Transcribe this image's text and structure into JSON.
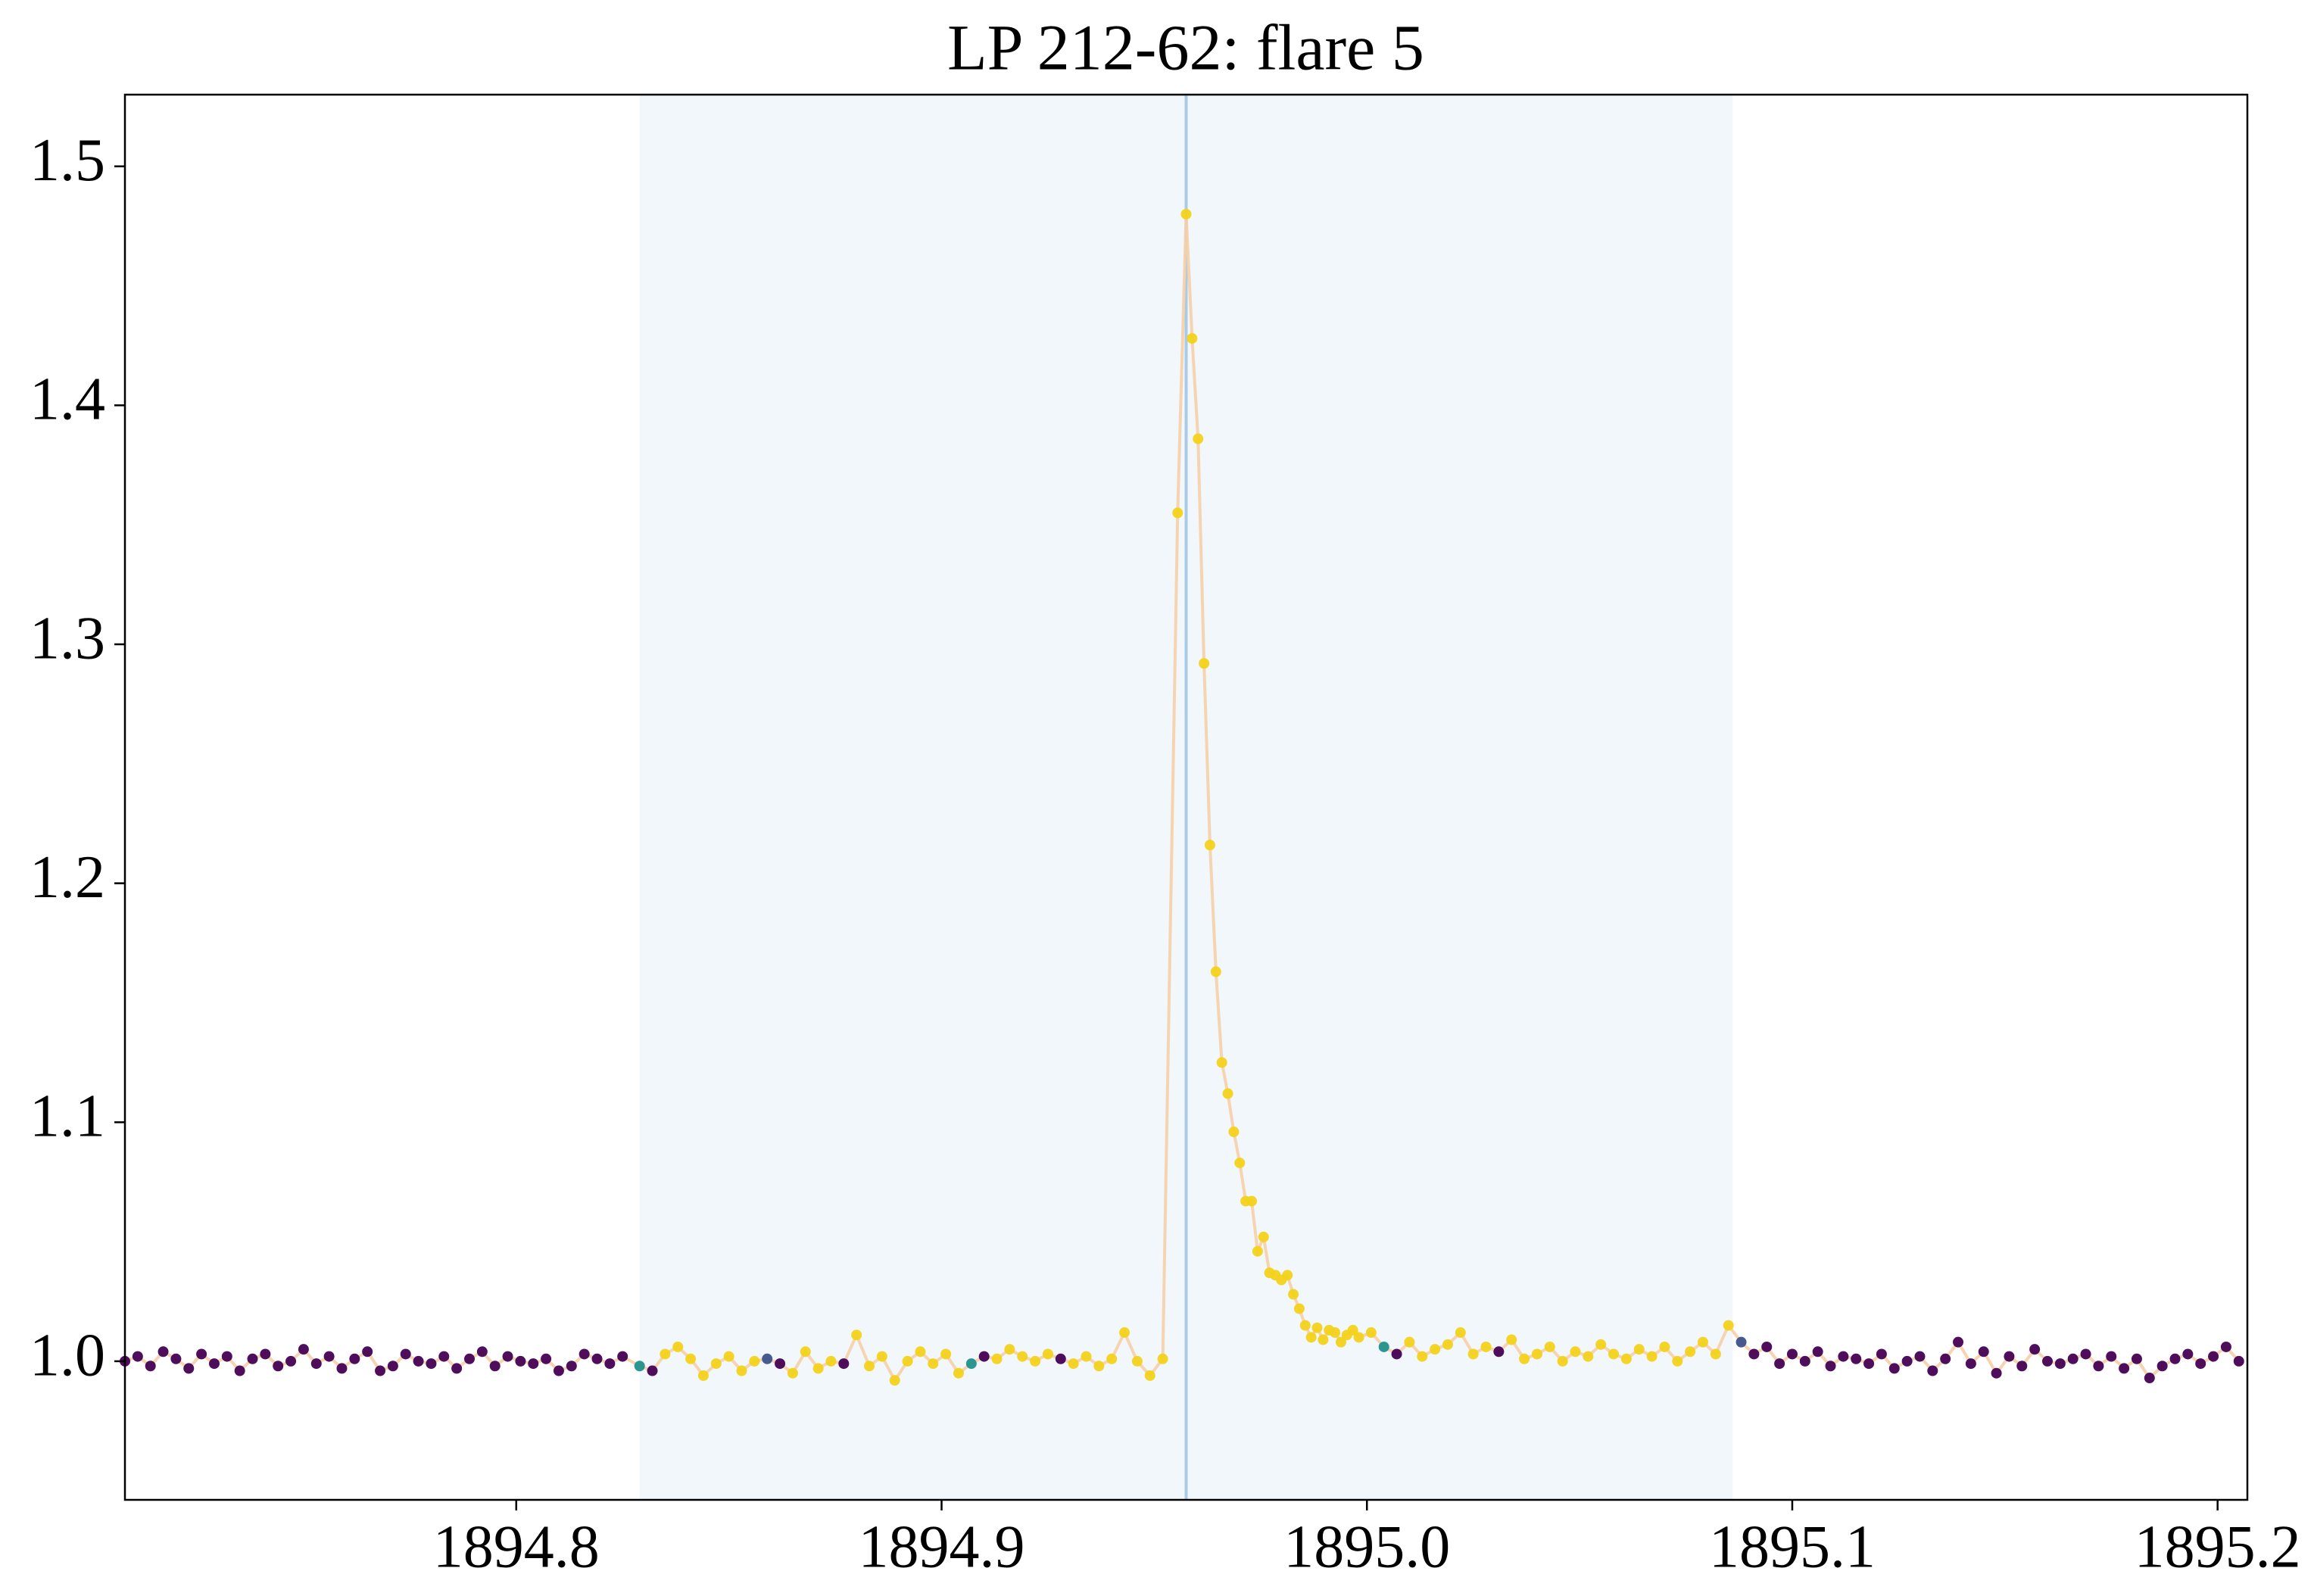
{
  "chart_data": {
    "type": "scatter",
    "title": "LP 212-62: flare 5",
    "xlim": [
      1894.708,
      1895.207
    ],
    "ylim": [
      0.942,
      1.53
    ],
    "xticks": [
      1894.8,
      1894.9,
      {
        "value": 1895,
        "label": "1895.0"
      },
      1895.1,
      1895.2
    ],
    "yticks": [
      {
        "value": 1,
        "label": "1.0"
      },
      1.1,
      1.2,
      1.3,
      1.4,
      1.5
    ],
    "span": [
      1894.829,
      1895.086
    ],
    "span_color": "#f1f7fa",
    "vline": 1894.9575,
    "vline_color": "#a9cbe6",
    "line_color": "#f6cfa8",
    "series": [
      {
        "x": [
          1894.708,
          1894.711,
          1894.714,
          1894.717,
          1894.72,
          1894.723,
          1894.726,
          1894.729,
          1894.732,
          1894.735,
          1894.738,
          1894.741,
          1894.744,
          1894.747,
          1894.75,
          1894.753,
          1894.756,
          1894.759,
          1894.762,
          1894.765,
          1894.768,
          1894.771,
          1894.774,
          1894.777,
          1894.78,
          1894.783,
          1894.786,
          1894.789,
          1894.792,
          1894.795,
          1894.798,
          1894.801,
          1894.804,
          1894.807,
          1894.81,
          1894.813,
          1894.816,
          1894.819,
          1894.822,
          1894.825,
          1894.829,
          1894.832,
          1894.835,
          1894.838,
          1894.841,
          1894.844,
          1894.847,
          1894.85,
          1894.853,
          1894.856,
          1894.859,
          1894.862,
          1894.865,
          1894.868,
          1894.871,
          1894.874,
          1894.877,
          1894.88,
          1894.883,
          1894.886,
          1894.889,
          1894.892,
          1894.895,
          1894.898,
          1894.901,
          1894.904,
          1894.907,
          1894.91,
          1894.913,
          1894.916,
          1894.919,
          1894.922,
          1894.925,
          1894.928,
          1894.931,
          1894.934,
          1894.937,
          1894.94,
          1894.943,
          1894.946,
          1894.949,
          1894.952,
          1894.9555,
          1894.9575,
          1894.9589,
          1894.9603,
          1894.9617,
          1894.9631,
          1894.9645,
          1894.9659,
          1894.9673,
          1894.9687,
          1894.9701,
          1894.9715,
          1894.9729,
          1894.9743,
          1894.9757,
          1894.9771,
          1894.9785,
          1894.9799,
          1894.9813,
          1894.9827,
          1894.9841,
          1894.9855,
          1894.9869,
          1894.9883,
          1894.9897,
          1894.9911,
          1894.9925,
          1894.9939,
          1894.9953,
          1894.9967,
          1894.9981,
          1895.001,
          1895.004,
          1895.007,
          1895.01,
          1895.013,
          1895.016,
          1895.019,
          1895.022,
          1895.025,
          1895.028,
          1895.031,
          1895.034,
          1895.037,
          1895.04,
          1895.043,
          1895.046,
          1895.049,
          1895.052,
          1895.055,
          1895.058,
          1895.061,
          1895.064,
          1895.067,
          1895.07,
          1895.073,
          1895.076,
          1895.079,
          1895.082,
          1895.085,
          1895.088,
          1895.091,
          1895.094,
          1895.097,
          1895.1,
          1895.103,
          1895.106,
          1895.109,
          1895.112,
          1895.115,
          1895.118,
          1895.121,
          1895.124,
          1895.127,
          1895.13,
          1895.133,
          1895.136,
          1895.139,
          1895.142,
          1895.145,
          1895.148,
          1895.151,
          1895.154,
          1895.157,
          1895.16,
          1895.163,
          1895.166,
          1895.169,
          1895.172,
          1895.175,
          1895.178,
          1895.181,
          1895.184,
          1895.187,
          1895.19,
          1895.193,
          1895.196,
          1895.199,
          1895.202,
          1895.205
        ],
        "values": [
          1.0,
          1.002,
          0.998,
          1.004,
          1.001,
          0.997,
          1.003,
          0.999,
          1.002,
          0.996,
          1.001,
          1.003,
          0.998,
          1.0,
          1.005,
          0.999,
          1.002,
          0.997,
          1.001,
          1.004,
          0.996,
          0.998,
          1.003,
          1.0,
          0.999,
          1.002,
          0.997,
          1.001,
          1.004,
          0.998,
          1.002,
          1.0,
          0.999,
          1.001,
          0.996,
          0.998,
          1.003,
          1.001,
          0.999,
          1.002,
          0.998,
          0.996,
          1.003,
          1.006,
          1.001,
          0.994,
          0.999,
          1.002,
          0.996,
          1.0,
          1.001,
          0.999,
          0.995,
          1.004,
          0.997,
          1.0,
          0.999,
          1.011,
          0.998,
          1.002,
          0.992,
          1.0,
          1.004,
          0.999,
          1.003,
          0.995,
          0.999,
          1.002,
          1.001,
          1.005,
          1.002,
          1.0,
          1.003,
          1.001,
          0.999,
          1.002,
          0.998,
          1.001,
          1.012,
          1.0,
          0.994,
          1.001,
          1.355,
          1.48,
          1.428,
          1.386,
          1.292,
          1.216,
          1.163,
          1.125,
          1.112,
          1.096,
          1.083,
          1.067,
          1.067,
          1.046,
          1.052,
          1.037,
          1.036,
          1.034,
          1.036,
          1.028,
          1.022,
          1.015,
          1.01,
          1.014,
          1.009,
          1.013,
          1.012,
          1.008,
          1.011,
          1.013,
          1.01,
          1.012,
          1.006,
          1.003,
          1.008,
          1.002,
          1.005,
          1.007,
          1.012,
          1.003,
          1.006,
          1.004,
          1.009,
          1.001,
          1.003,
          1.006,
          1.0,
          1.004,
          1.002,
          1.007,
          1.003,
          1.001,
          1.005,
          1.002,
          1.006,
          1.0,
          1.004,
          1.008,
          1.003,
          1.015,
          1.008,
          1.003,
          1.006,
          0.999,
          1.003,
          1.0,
          1.004,
          0.998,
          1.002,
          1.001,
          0.999,
          1.003,
          0.997,
          1.0,
          1.002,
          0.996,
          1.001,
          1.008,
          0.999,
          1.004,
          0.995,
          1.002,
          0.998,
          1.005,
          1.0,
          0.999,
          1.001,
          1.003,
          0.998,
          1.002,
          0.997,
          1.001,
          0.993,
          0.998,
          1.001,
          1.003,
          0.999,
          1.002,
          1.006,
          1.0
        ],
        "colors": [
          "#440154",
          "#440154",
          "#440154",
          "#440154",
          "#440154",
          "#440154",
          "#440154",
          "#440154",
          "#440154",
          "#440154",
          "#440154",
          "#440154",
          "#440154",
          "#440154",
          "#440154",
          "#440154",
          "#440154",
          "#440154",
          "#440154",
          "#440154",
          "#440154",
          "#440154",
          "#440154",
          "#440154",
          "#440154",
          "#440154",
          "#440154",
          "#440154",
          "#440154",
          "#440154",
          "#440154",
          "#440154",
          "#440154",
          "#440154",
          "#440154",
          "#440154",
          "#440154",
          "#440154",
          "#440154",
          "#440154",
          "#21918c",
          "#440154",
          "#f2d21b",
          "#f2d21b",
          "#f2d21b",
          "#f2d21b",
          "#f2d21b",
          "#f2d21b",
          "#f2d21b",
          "#f2d21b",
          "#3b528b",
          "#440154",
          "#f2d21b",
          "#f2d21b",
          "#f2d21b",
          "#f2d21b",
          "#440154",
          "#f2d21b",
          "#f2d21b",
          "#f2d21b",
          "#f2d21b",
          "#f2d21b",
          "#f2d21b",
          "#f2d21b",
          "#f2d21b",
          "#f2d21b",
          "#21918c",
          "#440154",
          "#f2d21b",
          "#f2d21b",
          "#f2d21b",
          "#f2d21b",
          "#f2d21b",
          "#440154",
          "#f2d21b",
          "#f2d21b",
          "#f2d21b",
          "#f2d21b",
          "#f2d21b",
          "#f2d21b",
          "#f2d21b",
          "#f2d21b",
          "#f2d21b",
          "#f2d21b",
          "#f2d21b",
          "#f2d21b",
          "#f2d21b",
          "#f2d21b",
          "#f2d21b",
          "#f2d21b",
          "#f2d21b",
          "#f2d21b",
          "#f2d21b",
          "#f2d21b",
          "#f2d21b",
          "#f2d21b",
          "#f2d21b",
          "#f2d21b",
          "#f2d21b",
          "#f2d21b",
          "#f2d21b",
          "#f2d21b",
          "#f2d21b",
          "#f2d21b",
          "#f2d21b",
          "#f2d21b",
          "#f2d21b",
          "#f2d21b",
          "#f2d21b",
          "#f2d21b",
          "#f2d21b",
          "#f2d21b",
          "#f2d21b",
          "#f2d21b",
          "#21918c",
          "#440154",
          "#f2d21b",
          "#f2d21b",
          "#f2d21b",
          "#f2d21b",
          "#f2d21b",
          "#f2d21b",
          "#f2d21b",
          "#440154",
          "#f2d21b",
          "#f2d21b",
          "#f2d21b",
          "#f2d21b",
          "#f2d21b",
          "#f2d21b",
          "#f2d21b",
          "#f2d21b",
          "#f2d21b",
          "#f2d21b",
          "#f2d21b",
          "#f2d21b",
          "#f2d21b",
          "#f2d21b",
          "#f2d21b",
          "#f2d21b",
          "#f2d21b",
          "#f2d21b",
          "#3b528b",
          "#440154",
          "#440154",
          "#440154",
          "#440154",
          "#440154",
          "#440154",
          "#440154",
          "#440154",
          "#440154",
          "#440154",
          "#440154",
          "#440154",
          "#440154",
          "#440154",
          "#440154",
          "#440154",
          "#440154",
          "#440154",
          "#440154",
          "#440154",
          "#440154",
          "#440154",
          "#440154",
          "#440154",
          "#440154",
          "#440154",
          "#440154",
          "#440154",
          "#440154",
          "#440154",
          "#440154",
          "#440154",
          "#440154",
          "#440154",
          "#440154",
          "#440154",
          "#440154",
          "#440154",
          "#440154"
        ]
      }
    ]
  }
}
